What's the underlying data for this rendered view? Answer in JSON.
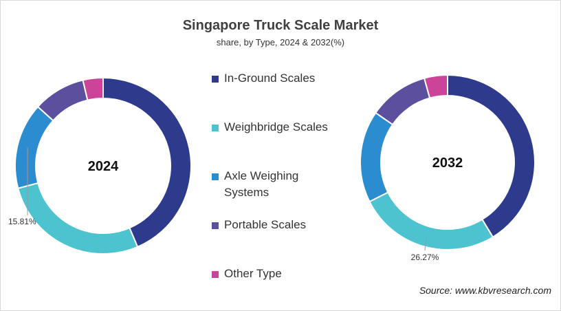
{
  "chart_data": {
    "type": "pie",
    "title": "Singapore Truck Scale Market",
    "subtitle": "share, by Type, 2024 & 2032(%)",
    "categories": [
      "In-Ground Scales",
      "Weighbridge Scales",
      "Axle Weighing Systems",
      "Portable Scales",
      "Other Type"
    ],
    "colors": [
      "#2e3a8c",
      "#4dc3d0",
      "#2b8ccf",
      "#5b4f9e",
      "#cc4499"
    ],
    "series": [
      {
        "name": "2024",
        "values": [
          43.6,
          27.3,
          15.81,
          9.6,
          3.7
        ]
      },
      {
        "name": "2032",
        "values": [
          41.3,
          26.27,
          17.0,
          11.1,
          4.3
        ]
      }
    ],
    "data_labels": [
      {
        "series": "2024",
        "category": "Axle Weighing Systems",
        "text": "15.81%"
      },
      {
        "series": "2032",
        "category": "Weighbridge Scales",
        "text": "26.27%"
      }
    ],
    "legend_position": "center"
  },
  "legend": {
    "items": [
      {
        "label": "In-Ground Scales",
        "color": "#2e3a8c"
      },
      {
        "label": "Weighbridge Scales",
        "color": "#4dc3d0"
      },
      {
        "label": "Axle Weighing Systems",
        "color": "#2b8ccf"
      },
      {
        "label": "Portable Scales",
        "color": "#5b4f9e"
      },
      {
        "label": "Other Type",
        "color": "#cc4499"
      }
    ]
  },
  "source": "Source: www.kbvresearch.com"
}
